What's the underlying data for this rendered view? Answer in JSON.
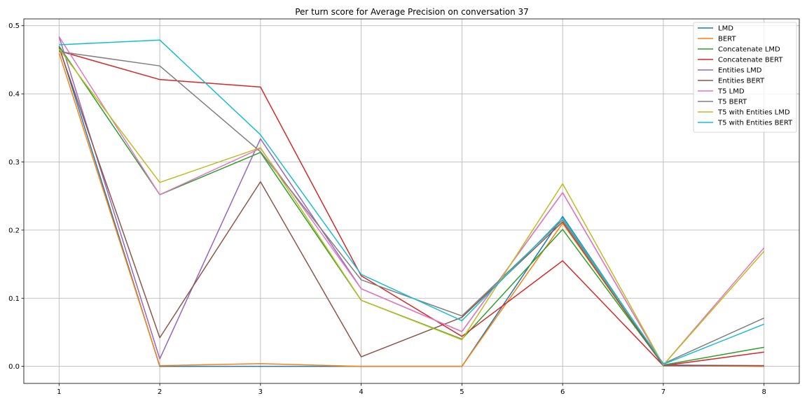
{
  "chart_data": {
    "type": "line",
    "title": "Per turn score for Average Precision on conversation 37",
    "xlabel": "",
    "ylabel": "",
    "x": [
      1,
      2,
      3,
      4,
      5,
      6,
      7,
      8
    ],
    "xlim": [
      0.65,
      8.35
    ],
    "ylim": [
      -0.025,
      0.51
    ],
    "xticks": [
      1,
      2,
      3,
      4,
      5,
      6,
      7,
      8
    ],
    "yticks": [
      0.0,
      0.1,
      0.2,
      0.3,
      0.4,
      0.5
    ],
    "ytick_labels": [
      "0.0",
      "0.1",
      "0.2",
      "0.3",
      "0.4",
      "0.5"
    ],
    "grid": true,
    "legend_position": "top-right",
    "series": [
      {
        "name": "LMD",
        "color": "#1f77b4",
        "values": [
          0.47,
          0.0,
          0.0,
          0.0,
          0.0,
          0.22,
          0.002,
          0.0
        ]
      },
      {
        "name": "BERT",
        "color": "#ff7f0e",
        "values": [
          0.46,
          0.001,
          0.004,
          0.0,
          0.0,
          0.21,
          0.001,
          0.0
        ]
      },
      {
        "name": "Concatenate LMD",
        "color": "#2ca02c",
        "values": [
          0.47,
          0.252,
          0.314,
          0.097,
          0.04,
          0.201,
          0.002,
          0.028
        ]
      },
      {
        "name": "Concatenate BERT",
        "color": "#d62728",
        "values": [
          0.463,
          0.421,
          0.41,
          0.133,
          0.044,
          0.155,
          0.001,
          0.021
        ]
      },
      {
        "name": "Entities LMD",
        "color": "#9467bd",
        "values": [
          0.484,
          0.011,
          0.334,
          0.114,
          0.051,
          0.255,
          0.002,
          0.001
        ]
      },
      {
        "name": "Entities BERT",
        "color": "#8c564b",
        "values": [
          0.468,
          0.042,
          0.271,
          0.014,
          0.072,
          0.212,
          0.001,
          0.001
        ]
      },
      {
        "name": "T5 LMD",
        "color": "#e377c2",
        "values": [
          0.484,
          0.252,
          0.32,
          0.114,
          0.051,
          0.255,
          0.002,
          0.174
        ]
      },
      {
        "name": "T5 BERT",
        "color": "#7f7f7f",
        "values": [
          0.462,
          0.441,
          0.315,
          0.127,
          0.074,
          0.215,
          0.004,
          0.071
        ]
      },
      {
        "name": "T5 with Entities LMD",
        "color": "#bcbd22",
        "values": [
          0.466,
          0.27,
          0.321,
          0.097,
          0.039,
          0.268,
          0.002,
          0.169
        ]
      },
      {
        "name": "T5 with Entities BERT",
        "color": "#17becf",
        "values": [
          0.472,
          0.479,
          0.34,
          0.135,
          0.067,
          0.218,
          0.003,
          0.062
        ]
      }
    ]
  }
}
